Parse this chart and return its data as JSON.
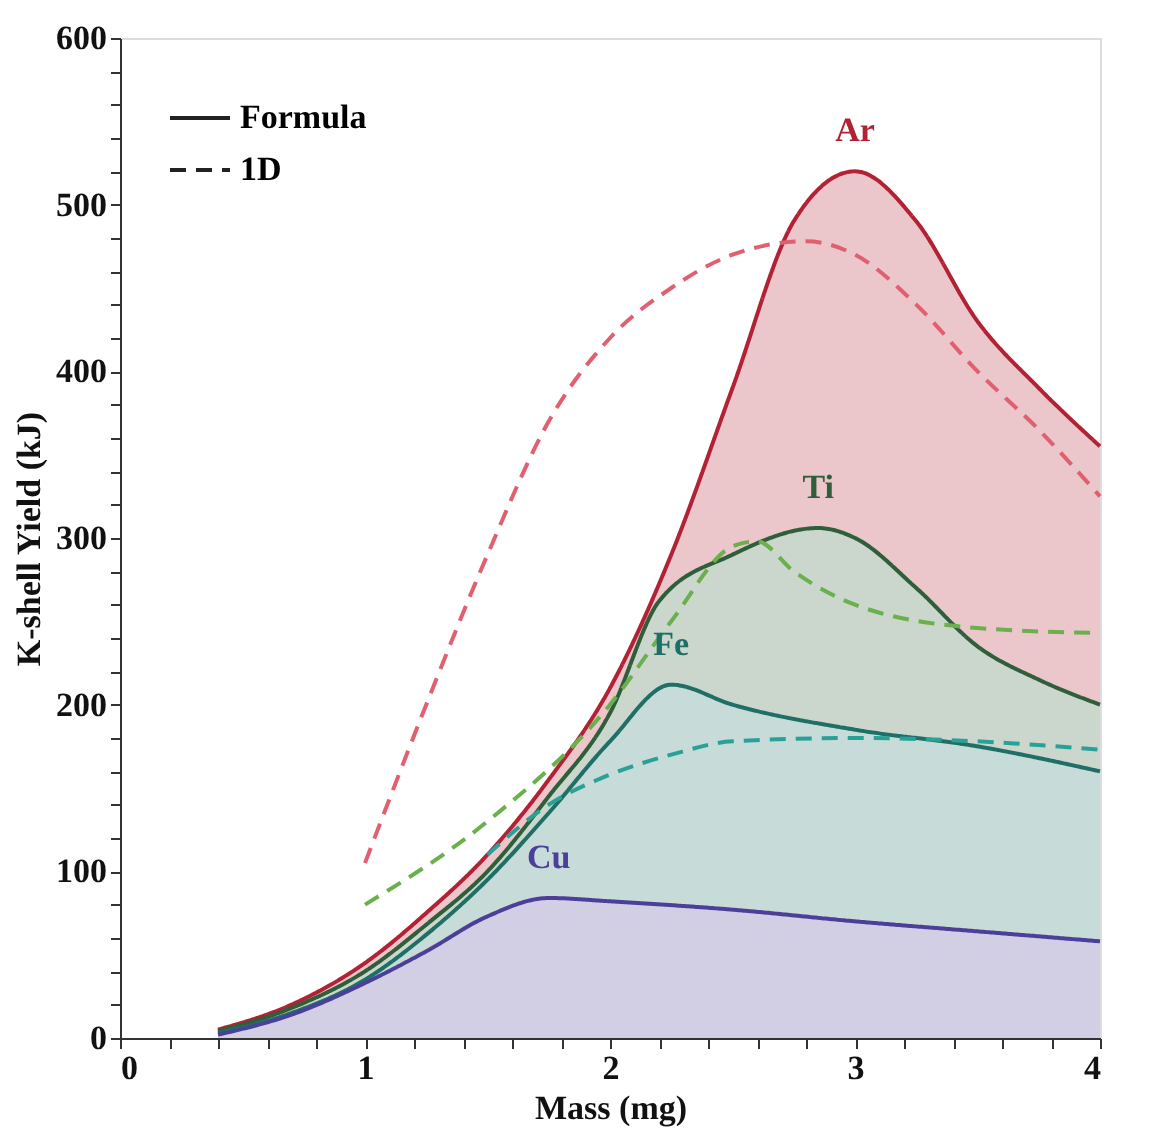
{
  "chart_data": {
    "type": "area",
    "xlabel": "Mass (mg)",
    "ylabel": "K-shell Yield (kJ)",
    "xlim": [
      0,
      4
    ],
    "ylim": [
      0,
      600
    ],
    "xticks": [
      0,
      {
        "value": 0.2,
        "label": null
      },
      {
        "value": 0.4,
        "label": null
      },
      {
        "value": 0.6,
        "label": null
      },
      {
        "value": 0.8,
        "label": null
      },
      1,
      {
        "value": 1.2,
        "label": null
      },
      {
        "value": 1.4,
        "label": null
      },
      {
        "value": 1.6,
        "label": null
      },
      {
        "value": 1.8,
        "label": null
      },
      2,
      {
        "value": 2.2,
        "label": null
      },
      {
        "value": 2.4,
        "label": null
      },
      {
        "value": 2.6,
        "label": null
      },
      {
        "value": 2.8,
        "label": null
      },
      3,
      {
        "value": 3.2,
        "label": null
      },
      {
        "value": 3.4,
        "label": null
      },
      {
        "value": 3.6,
        "label": null
      },
      {
        "value": 3.8,
        "label": null
      },
      4
    ],
    "yticks": [
      0,
      {
        "value": 20,
        "label": null
      },
      {
        "value": 40,
        "label": null
      },
      {
        "value": 60,
        "label": null
      },
      {
        "value": 80,
        "label": null
      },
      100,
      {
        "value": 120,
        "label": null
      },
      {
        "value": 140,
        "label": null
      },
      {
        "value": 160,
        "label": null
      },
      {
        "value": 180,
        "label": null
      },
      200,
      {
        "value": 220,
        "label": null
      },
      {
        "value": 240,
        "label": null
      },
      {
        "value": 260,
        "label": null
      },
      {
        "value": 280,
        "label": null
      },
      300,
      {
        "value": 320,
        "label": null
      },
      {
        "value": 340,
        "label": null
      },
      {
        "value": 360,
        "label": null
      },
      {
        "value": 380,
        "label": null
      },
      400,
      {
        "value": 420,
        "label": null
      },
      {
        "value": 440,
        "label": null
      },
      {
        "value": 460,
        "label": null
      },
      {
        "value": 480,
        "label": null
      },
      500,
      {
        "value": 520,
        "label": null
      },
      {
        "value": 540,
        "label": null
      },
      {
        "value": 560,
        "label": null
      },
      {
        "value": 580,
        "label": null
      },
      600
    ],
    "grid": false,
    "marker": "none",
    "series": [
      {
        "color": "#b22234",
        "line_style": "solid",
        "x": [
          0.4,
          0.7,
          1.0,
          1.25,
          1.5,
          1.75,
          2.0,
          2.25,
          2.5,
          2.75,
          3.0,
          3.25,
          3.5,
          3.75,
          4.0
        ],
        "values": [
          5,
          20,
          45,
          75,
          110,
          155,
          210,
          290,
          390,
          490,
          520,
          490,
          430,
          390,
          355
        ]
      },
      {
        "color": "#2f5f3a",
        "line_style": "solid",
        "x": [
          0.4,
          0.7,
          1.0,
          1.25,
          1.5,
          1.75,
          2.0,
          2.2,
          2.5,
          2.85,
          3.0,
          3.25,
          3.5,
          3.75,
          4.0
        ],
        "values": [
          4,
          18,
          40,
          68,
          100,
          145,
          195,
          262,
          290,
          306,
          300,
          270,
          235,
          215,
          200
        ]
      },
      {
        "color": "#1f6f66",
        "line_style": "solid",
        "x": [
          0.4,
          0.7,
          1.0,
          1.25,
          1.5,
          1.75,
          2.0,
          2.25,
          2.5,
          3.0,
          3.5,
          4.0
        ],
        "values": [
          3,
          15,
          35,
          62,
          95,
          135,
          178,
          212,
          200,
          185,
          175,
          160
        ]
      },
      {
        "color": "#4b3f9a",
        "line_style": "solid",
        "x": [
          0.4,
          0.7,
          1.0,
          1.25,
          1.5,
          1.75,
          2.0,
          2.5,
          3.0,
          3.5,
          4.0
        ],
        "values": [
          2,
          14,
          33,
          52,
          73,
          84,
          82,
          77,
          70,
          64,
          58
        ]
      },
      {
        "type": "line",
        "color": "#e06070",
        "line_style": "dashed",
        "x": [
          1.0,
          1.25,
          1.5,
          1.75,
          2.0,
          2.25,
          2.5,
          2.8,
          3.0,
          3.25,
          3.5,
          3.75,
          4.0
        ],
        "values": [
          105,
          200,
          290,
          370,
          420,
          450,
          470,
          478,
          470,
          440,
          400,
          365,
          325
        ]
      },
      {
        "type": "line",
        "color": "#6ab04c",
        "line_style": "dashed",
        "x": [
          1.0,
          1.5,
          2.0,
          2.25,
          2.5,
          2.6,
          2.75,
          3.0,
          3.5,
          4.0
        ],
        "values": [
          80,
          130,
          200,
          250,
          295,
          298,
          280,
          260,
          246,
          243
        ]
      },
      {
        "type": "line",
        "color": "#2aa198",
        "line_style": "dashed",
        "x": [
          1.5,
          1.75,
          2.0,
          2.25,
          2.5,
          3.0,
          3.5,
          4.0
        ],
        "values": [
          110,
          140,
          158,
          170,
          178,
          180,
          178,
          173
        ]
      }
    ],
    "annotations": [
      "Ar",
      "Ti",
      "Fe",
      "Cu",
      "Formula",
      "1D"
    ]
  }
}
